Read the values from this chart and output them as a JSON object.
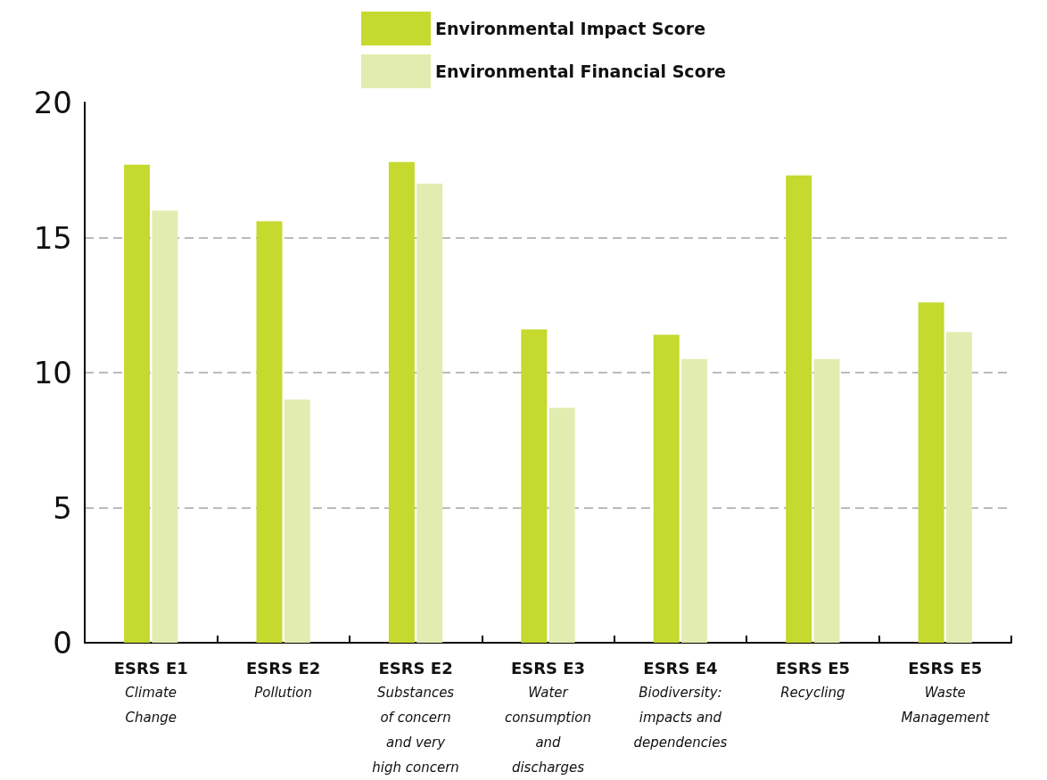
{
  "chart_data": {
    "type": "bar",
    "categories": [
      "ESRS E1\nClimate\nChange",
      "ESRS E2\nPollution",
      "ESRS E2\nSubstances\nof concern\nand very\nhigh concern",
      "ESRS E3\nWater\nconsumption\nand\ndischarges",
      "ESRS E4\nBiodiversity:\nimpacts and\ndependencies",
      "ESRS E5\nRecycling",
      "ESRS E5\nWaste\nManagement"
    ],
    "series": [
      {
        "name": "Environmental Impact Score",
        "color": "#c5d92f",
        "values": [
          17.7,
          15.6,
          17.8,
          11.6,
          11.4,
          17.3,
          12.6
        ]
      },
      {
        "name": "Environmental Financial Score",
        "color": "#e3ecb0",
        "values": [
          16.0,
          9.0,
          17.0,
          8.7,
          10.5,
          10.5,
          11.5
        ]
      }
    ],
    "ylim": [
      0,
      20
    ],
    "yticks": [
      0,
      5,
      10,
      15,
      20
    ],
    "grid": "y",
    "legend": "top"
  }
}
